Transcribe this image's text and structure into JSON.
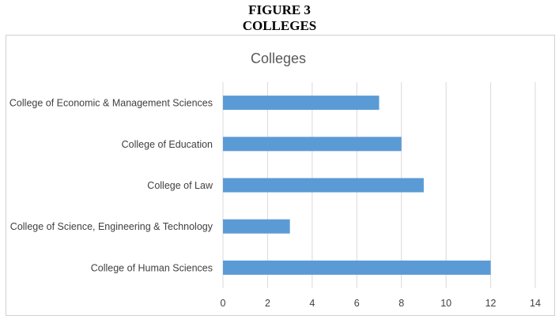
{
  "figure": {
    "number_label": "FIGURE 3",
    "title": "COLLEGES"
  },
  "chart_data": {
    "type": "bar",
    "orientation": "horizontal",
    "title": "Colleges",
    "categories": [
      "College of Economic & Management Sciences",
      "College of Education",
      "College of Law",
      "College of Science, Engineering & Technology",
      "College of Human Sciences"
    ],
    "values": [
      7,
      8,
      9,
      3,
      12
    ],
    "xlim": [
      0,
      14
    ],
    "xticks": [
      0,
      2,
      4,
      6,
      8,
      10,
      12,
      14
    ],
    "xlabel": "",
    "ylabel": "",
    "grid": true,
    "legend": "none",
    "bar_color": "#5b9bd5",
    "grid_color": "#d9d9d9"
  }
}
